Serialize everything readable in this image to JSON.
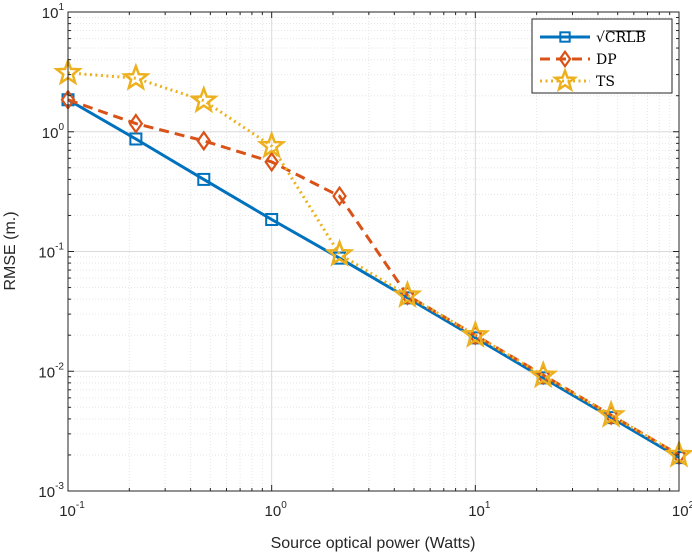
{
  "chart_data": {
    "type": "line",
    "title": "",
    "xlabel": "Source optical power (Watts)",
    "ylabel": "RMSE (m.)",
    "xscale": "log",
    "yscale": "log",
    "xlim": [
      0.1,
      100
    ],
    "ylim": [
      0.001,
      10
    ],
    "x_ticks": [
      {
        "value": 0.1,
        "base": "10",
        "exp": "-1"
      },
      {
        "value": 1,
        "base": "10",
        "exp": "0"
      },
      {
        "value": 10,
        "base": "10",
        "exp": "1"
      },
      {
        "value": 100,
        "base": "10",
        "exp": "2"
      }
    ],
    "y_ticks": [
      {
        "value": 0.001,
        "base": "10",
        "exp": "-3"
      },
      {
        "value": 0.01,
        "base": "10",
        "exp": "-2"
      },
      {
        "value": 0.1,
        "base": "10",
        "exp": "-1"
      },
      {
        "value": 1,
        "base": "10",
        "exp": "0"
      },
      {
        "value": 10,
        "base": "10",
        "exp": "1"
      }
    ],
    "grid": true,
    "legend_position": "top-right",
    "x": [
      0.1,
      0.2154,
      0.4642,
      1.0,
      2.154,
      4.642,
      10.0,
      21.54,
      46.42,
      100.0
    ],
    "series": [
      {
        "name": "√CRLB",
        "color": "#0072BD",
        "line_style": "solid",
        "marker": "square",
        "values": [
          1.85,
          0.87,
          0.4,
          0.185,
          0.088,
          0.041,
          0.019,
          0.0088,
          0.0041,
          0.0019
        ]
      },
      {
        "name": "DP",
        "color": "#D95319",
        "line_style": "dashed",
        "marker": "diamond",
        "values": [
          1.85,
          1.17,
          0.84,
          0.56,
          0.29,
          0.043,
          0.02,
          0.0093,
          0.0043,
          0.002
        ]
      },
      {
        "name": "TS",
        "color": "#EDB120",
        "line_style": "dotted",
        "marker": "star",
        "values": [
          3.1,
          2.8,
          1.82,
          0.76,
          0.095,
          0.043,
          0.02,
          0.0092,
          0.0043,
          0.002
        ]
      }
    ]
  }
}
